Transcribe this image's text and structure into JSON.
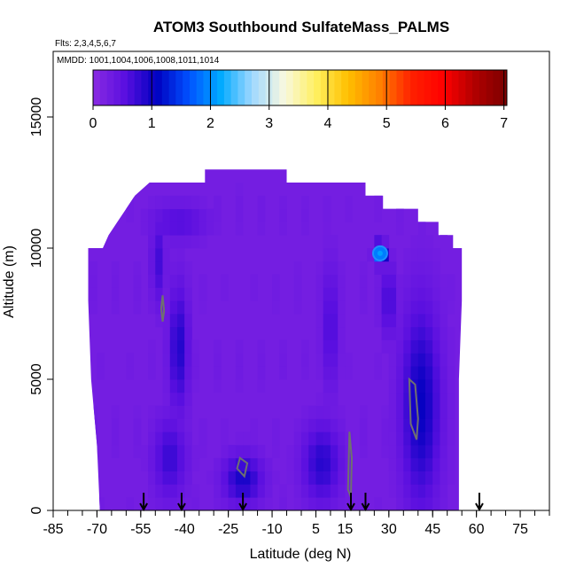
{
  "chart_data": {
    "type": "heatmap",
    "title": "ATOM3 Southbound SulfateMass_PALMS",
    "subtitle_flights": "Flts: 2,3,4,5,6,7",
    "subtitle_dates": "MMDD: 1001,1004,1006,1008,1011,1014",
    "xlabel": "Latitude (deg N)",
    "ylabel": "Altitude (m)",
    "xlim": [
      -85,
      85
    ],
    "ylim": [
      0,
      17500
    ],
    "x_tick_labels": [
      "-85",
      "-70",
      "-55",
      "-40",
      "-25",
      "-10",
      "5",
      "15",
      "30",
      "45",
      "60",
      "75"
    ],
    "x_tick_values": [
      -85,
      -70,
      -55,
      -40,
      -25,
      -10,
      5,
      15,
      30,
      45,
      60,
      75
    ],
    "y_tick_labels": [
      "0",
      "5000",
      "10000",
      "15000"
    ],
    "y_tick_values": [
      0,
      5000,
      10000,
      15000
    ],
    "colorbar": {
      "min": 0,
      "max": 7.05,
      "tick_labels": [
        "0",
        "1",
        "2",
        "3",
        "4",
        "5",
        "6",
        "7"
      ],
      "tick_values": [
        0,
        1,
        2,
        3,
        4,
        5,
        6,
        7
      ],
      "colors": [
        "#8a2be2",
        "#5a0fe0",
        "#0000c0",
        "#0050ff",
        "#00aaff",
        "#a0d8ff",
        "#f8f8e0",
        "#fff060",
        "#ffc000",
        "#ff8000",
        "#ff2000",
        "#ff0000",
        "#b00000",
        "#7a0000"
      ]
    },
    "background_value": 0.25,
    "sampled_region": {
      "outline": [
        [
          -69,
          0
        ],
        [
          -70,
          2500
        ],
        [
          -72,
          5000
        ],
        [
          -73,
          8000
        ],
        [
          -73,
          10000
        ],
        [
          -68,
          10000
        ],
        [
          -66,
          10500
        ],
        [
          -63,
          11000
        ],
        [
          -60,
          11500
        ],
        [
          -57,
          12000
        ],
        [
          -52,
          12500
        ],
        [
          -33,
          12500
        ],
        [
          -33,
          13000
        ],
        [
          -5,
          13000
        ],
        [
          -5,
          12500
        ],
        [
          22,
          12500
        ],
        [
          22,
          12000
        ],
        [
          28,
          12000
        ],
        [
          28,
          11500
        ],
        [
          40,
          11500
        ],
        [
          40,
          11000
        ],
        [
          47,
          11000
        ],
        [
          47,
          10500
        ],
        [
          52,
          10500
        ],
        [
          52,
          10000
        ],
        [
          55,
          10000
        ],
        [
          55,
          8000
        ],
        [
          54,
          5000
        ],
        [
          54,
          0
        ]
      ]
    },
    "features": [
      {
        "lat": -49,
        "alt": 9500,
        "lat_width": 5,
        "alt_height": 3500,
        "value": 0.7
      },
      {
        "lat": -42,
        "alt": 6200,
        "lat_width": 7,
        "alt_height": 5000,
        "value": 0.9
      },
      {
        "lat": -45,
        "alt": 2000,
        "lat_width": 12,
        "alt_height": 3200,
        "value": 0.75
      },
      {
        "lat": -20,
        "alt": 1200,
        "lat_width": 14,
        "alt_height": 2000,
        "value": 0.95
      },
      {
        "lat": 10,
        "alt": 7000,
        "lat_width": 6,
        "alt_height": 5000,
        "value": 0.65
      },
      {
        "lat": 7,
        "alt": 1800,
        "lat_width": 14,
        "alt_height": 3200,
        "value": 0.85
      },
      {
        "lat": 41,
        "alt": 4000,
        "lat_width": 14,
        "alt_height": 8000,
        "value": 1.05
      },
      {
        "lat": 30,
        "alt": 8000,
        "lat_width": 6,
        "alt_height": 3000,
        "value": 0.7
      },
      {
        "lat": 27,
        "alt": 9800,
        "lat_width": 4,
        "alt_height": 800,
        "value": 2.1
      },
      {
        "lat": -42,
        "alt": 11000,
        "lat_width": 20,
        "alt_height": 1500,
        "value": 0.6
      }
    ],
    "contours": [
      {
        "points": [
          [
            -47.5,
            8200
          ],
          [
            -47,
            7600
          ],
          [
            -47.5,
            7200
          ],
          [
            -48,
            7700
          ],
          [
            -47.5,
            8200
          ]
        ]
      },
      {
        "points": [
          [
            -21,
            2000
          ],
          [
            -18.5,
            1800
          ],
          [
            -19.5,
            1300
          ],
          [
            -22,
            1600
          ],
          [
            -21,
            2000
          ]
        ]
      },
      {
        "points": [
          [
            37,
            5000
          ],
          [
            39,
            4800
          ],
          [
            40,
            3500
          ],
          [
            39.5,
            2700
          ],
          [
            37.5,
            3300
          ],
          [
            37,
            5000
          ]
        ]
      },
      {
        "points": [
          [
            16.5,
            3000
          ],
          [
            17.3,
            2000
          ],
          [
            17,
            500
          ],
          [
            16,
            800
          ],
          [
            16.5,
            3000
          ]
        ]
      }
    ],
    "flight_markers_lat": [
      -54,
      -41,
      -20,
      17,
      22,
      61
    ]
  }
}
